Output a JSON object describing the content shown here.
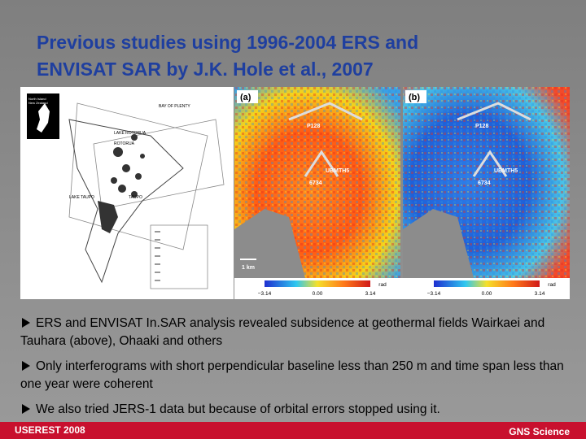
{
  "header": {
    "title_lines": [
      "Previous studies using 1996-2004 ERS and",
      "ENVISAT SAR by J.K. Hole et al., 2007"
    ]
  },
  "figure": {
    "map": {
      "inset": [
        "North Island",
        "New Zealand"
      ],
      "labels": [
        "BAY OF PLENTY",
        "LAKE ROTORUA",
        "ROTORUA",
        "LAKE TAUPO",
        "TAUPO"
      ]
    },
    "interferograms": {
      "panels": [
        "(a)",
        "(b)"
      ],
      "points": [
        "P128",
        "UBMTH5",
        "6734"
      ],
      "scale": "1 km",
      "unit": "rad",
      "colorbar": [
        "−3.14",
        "0.00",
        "3.14"
      ]
    }
  },
  "bullets": [
    "ERS and ENVISAT In.SAR analysis revealed subsidence at geothermal fields Wairkaei and Tauhara (above), Ohaaki and others",
    "Only interferograms with short perpendicular baseline less than 250 m  and time span less than one year were coherent",
    "We also tried JERS-1 data but because of orbital errors stopped using it."
  ],
  "footer": {
    "left": "USEREST 2008",
    "right": "GNS Science"
  }
}
